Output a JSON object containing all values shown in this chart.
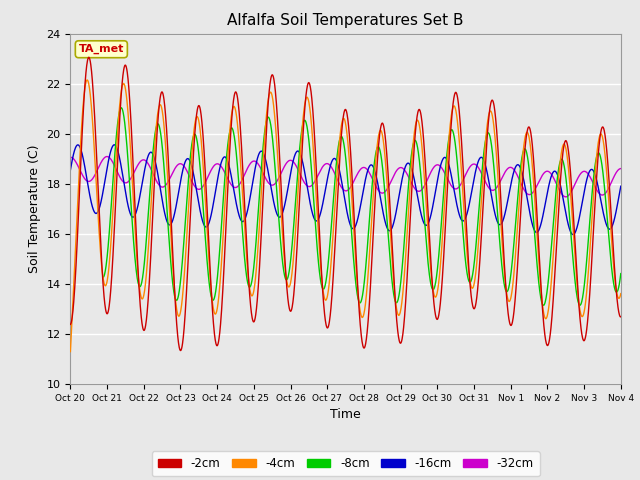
{
  "title": "Alfalfa Soil Temperatures Set B",
  "xlabel": "Time",
  "ylabel": "Soil Temperature (C)",
  "ylim": [
    10,
    24
  ],
  "xlim": [
    0,
    15
  ],
  "tick_labels": [
    "Oct 20",
    "Oct 21",
    "Oct 22",
    "Oct 23",
    "Oct 24",
    "Oct 25",
    "Oct 26",
    "Oct 27",
    "Oct 28",
    "Oct 29",
    "Oct 30",
    "Oct 31",
    "Nov 1",
    "Nov 2",
    "Nov 3",
    "Nov 4"
  ],
  "colors": {
    "-2cm": "#cc0000",
    "-4cm": "#ff8800",
    "-8cm": "#00cc00",
    "-16cm": "#0000cc",
    "-32cm": "#cc00cc"
  },
  "legend_entries": [
    "-2cm",
    "-4cm",
    "-8cm",
    "-16cm",
    "-32cm"
  ],
  "fig_bg_color": "#e8e8e8",
  "plot_bg_color": "#e8e8e8",
  "ta_met_label": "TA_met",
  "ta_met_color": "#cc0000",
  "ta_met_bg": "#ffffcc",
  "ta_met_border": "#aaaa00"
}
